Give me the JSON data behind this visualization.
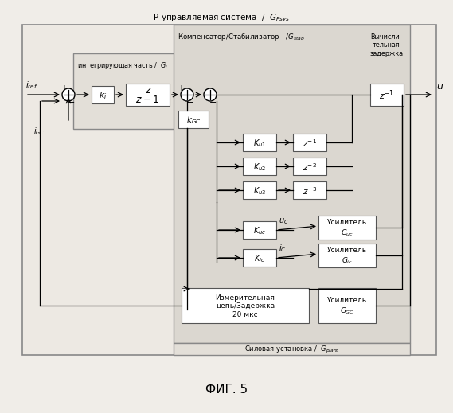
{
  "fig_bg": "#f0ede8",
  "outer_fc": "#ede9e3",
  "int_fc": "#e3dfd8",
  "comp_fc": "#dbd7d0",
  "plant_fc": "#e3dfd8",
  "white_fc": "#ffffff",
  "ec_dark": "#666666",
  "ec_med": "#888888",
  "top_label": "Р-управляемая система  /  $G_{Psys}$",
  "int_label": "интегрирующая часть /  $G_i$",
  "comp_label": "Компенсатор/Стабилизатор   /$G_{stab}$",
  "delay_label": "Вычисли-\nтельная\nзадержка",
  "plant_label": "Силовая установка /  $G_{plant}$",
  "caption": "ФИГ. 5",
  "i_ref": "$i_{ref}$",
  "i_gc": "$i_{GC}$",
  "u_out": "$u$",
  "ki_txt": "$k_i$",
  "ztf_txt": "$\\dfrac{z}{z-1}$",
  "kgc_txt": "$k_{GC}$",
  "ku1_txt": "$K_{u1}$",
  "ku2_txt": "$K_{u2}$",
  "ku3_txt": "$K_{u3}$",
  "zinv1_txt": "$z^{-1}$",
  "zinv2_txt": "$z^{-2}$",
  "zinv3_txt": "$z^{-3}$",
  "zout_txt": "$z^{-1}$",
  "kuc_txt": "$K_{uc}$",
  "uc_txt": "$u_C$",
  "kic_txt": "$K_{ic}$",
  "ic_txt": "$i_C$",
  "amp_uc_txt": "Усилитель\n$G_{uc}$",
  "amp_ic_txt": "Усилитель\n$G_{ic}$",
  "meas_txt": "Измерительная\nцепь/Задержка\n20 мкс",
  "amp_gc_txt": "Усилитель\n$G_{GC}$"
}
